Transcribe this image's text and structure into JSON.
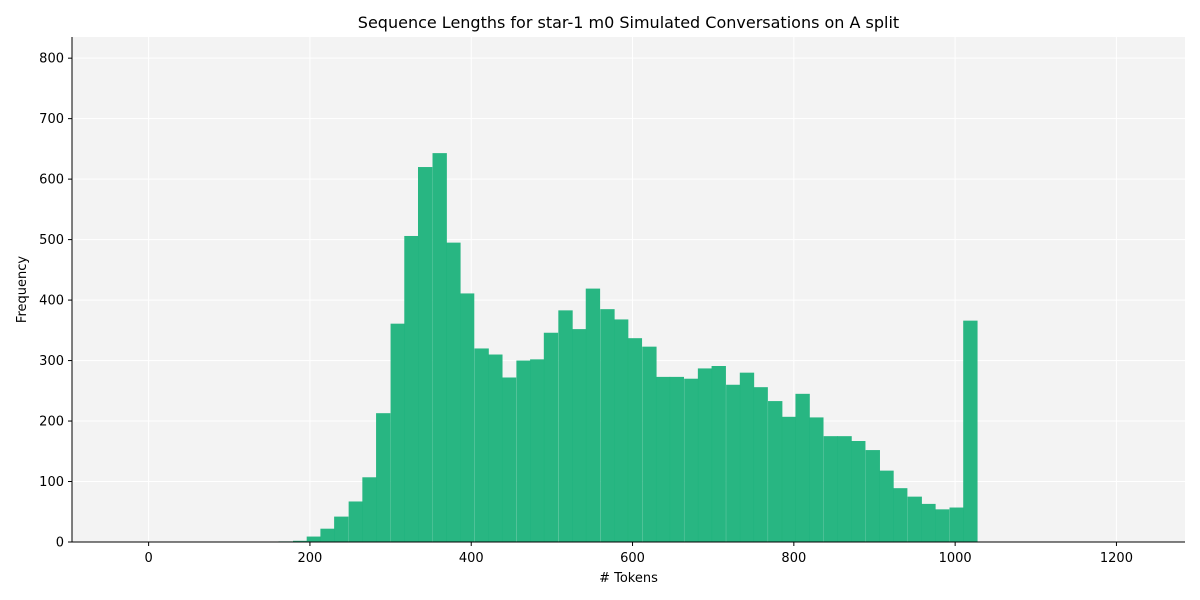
{
  "chart_data": {
    "type": "bar",
    "title": "Sequence Lengths for star-1 m0 Simulated Conversations on A split",
    "xlabel": "# Tokens",
    "ylabel": "Frequency",
    "xlim": [
      -95,
      1285
    ],
    "ylim": [
      0,
      835
    ],
    "xticks": [
      0,
      200,
      400,
      600,
      800,
      1000,
      1200
    ],
    "yticks": [
      0,
      100,
      200,
      300,
      400,
      500,
      600,
      700,
      800
    ],
    "bin_width": 17.3,
    "bin_starts": [
      161,
      179,
      196,
      213,
      230,
      248,
      265,
      282,
      300,
      317,
      334,
      352,
      369,
      386,
      404,
      421,
      438,
      456,
      473,
      490,
      508,
      525,
      542,
      560,
      577,
      594,
      612,
      629,
      646,
      664,
      681,
      698,
      716,
      733,
      750,
      768,
      785,
      802,
      819,
      837,
      854,
      871,
      889,
      906,
      923,
      941,
      958,
      975,
      993,
      1010
    ],
    "values": [
      1,
      2,
      9,
      22,
      42,
      67,
      107,
      213,
      361,
      506,
      620,
      643,
      495,
      411,
      320,
      310,
      272,
      300,
      302,
      346,
      383,
      352,
      419,
      385,
      368,
      337,
      323,
      273,
      273,
      270,
      287,
      291,
      260,
      280,
      256,
      233,
      207,
      245,
      206,
      175,
      175,
      167,
      152,
      118,
      89,
      75,
      63,
      54,
      57,
      366
    ],
    "color": "#21b47e",
    "background": "#f3f3f3",
    "grid": true,
    "legend": "none"
  }
}
